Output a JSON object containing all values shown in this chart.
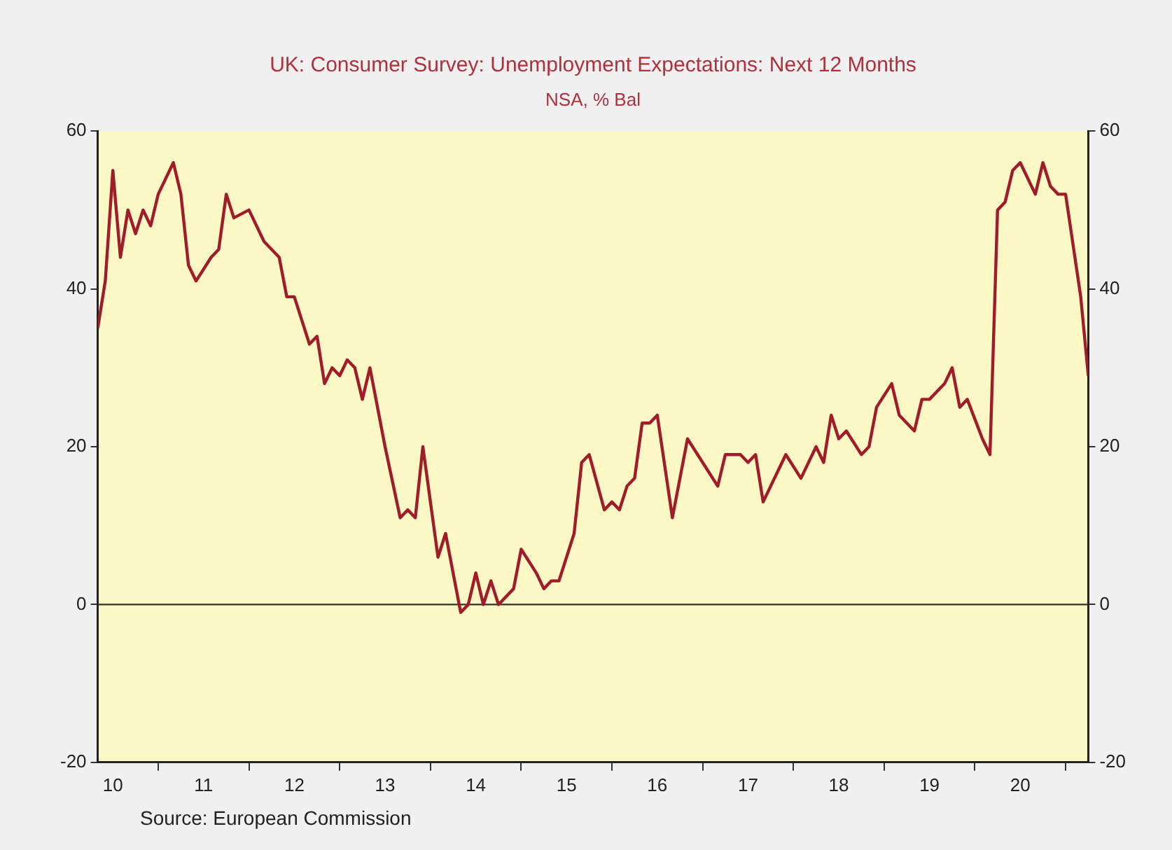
{
  "chart_data": {
    "type": "line",
    "title": "UK: Consumer Survey: Unemployment Expectations: Next 12 Months",
    "subtitle": "NSA, % Bal",
    "x": [
      "2010-05",
      "2010-06",
      "2010-07",
      "2010-08",
      "2010-09",
      "2010-10",
      "2010-11",
      "2010-12",
      "2011-01",
      "2011-03",
      "2011-04",
      "2011-05",
      "2011-06",
      "2011-08",
      "2011-09",
      "2011-10",
      "2011-11",
      "2012-01",
      "2012-03",
      "2012-05",
      "2012-06",
      "2012-07",
      "2012-09",
      "2012-10",
      "2012-11",
      "2012-12",
      "2013-01",
      "2013-02",
      "2013-03",
      "2013-04",
      "2013-05",
      "2013-07",
      "2013-09",
      "2013-10",
      "2013-11",
      "2013-12",
      "2014-01",
      "2014-02",
      "2014-03",
      "2014-05",
      "2014-06",
      "2014-07",
      "2014-08",
      "2014-09",
      "2014-10",
      "2014-12",
      "2015-01",
      "2015-03",
      "2015-04",
      "2015-05",
      "2015-06",
      "2015-08",
      "2015-09",
      "2015-10",
      "2015-12",
      "2016-01",
      "2016-02",
      "2016-03",
      "2016-04",
      "2016-05",
      "2016-06",
      "2016-07",
      "2016-09",
      "2016-11",
      "2017-01",
      "2017-03",
      "2017-04",
      "2017-06",
      "2017-07",
      "2017-08",
      "2017-09",
      "2017-11",
      "2017-12",
      "2018-02",
      "2018-04",
      "2018-05",
      "2018-06",
      "2018-07",
      "2018-08",
      "2018-10",
      "2018-11",
      "2018-12",
      "2019-02",
      "2019-03",
      "2019-05",
      "2019-06",
      "2019-07",
      "2019-09",
      "2019-10",
      "2019-11",
      "2019-12",
      "2020-02",
      "2020-03",
      "2020-04",
      "2020-05",
      "2020-06",
      "2020-07",
      "2020-09",
      "2020-10",
      "2020-11",
      "2020-12",
      "2021-01",
      "2021-03",
      "2021-04"
    ],
    "series": [
      {
        "color": "#a01c28",
        "values": [
          35,
          41,
          55,
          44,
          50,
          47,
          50,
          48,
          52,
          56,
          52,
          43,
          41,
          44,
          45,
          52,
          49,
          50,
          46,
          44,
          39,
          39,
          33,
          34,
          28,
          30,
          29,
          31,
          30,
          26,
          30,
          20,
          11,
          12,
          11,
          20,
          13,
          6,
          9,
          -1,
          0,
          4,
          0,
          3,
          0,
          2,
          7,
          4,
          2,
          3,
          3,
          9,
          18,
          19,
          12,
          13,
          12,
          15,
          16,
          23,
          23,
          24,
          11,
          21,
          18,
          15,
          19,
          19,
          18,
          19,
          13,
          17,
          19,
          16,
          20,
          18,
          24,
          21,
          22,
          19,
          20,
          25,
          28,
          24,
          22,
          26,
          26,
          28,
          30,
          25,
          26,
          21,
          19,
          50,
          51,
          55,
          56,
          52,
          56,
          53,
          52,
          52,
          39,
          29
        ]
      }
    ],
    "xlim": [
      "2010-05",
      "2021-04"
    ],
    "xticks": [
      {
        "value": "2010-07",
        "label": "10"
      },
      {
        "value": "2011",
        "label": null
      },
      {
        "value": "2011-07",
        "label": "11"
      },
      {
        "value": "2012",
        "label": null
      },
      {
        "value": "2012-07",
        "label": "12"
      },
      {
        "value": "2013",
        "label": null
      },
      {
        "value": "2013-07",
        "label": "13"
      },
      {
        "value": "2014",
        "label": null
      },
      {
        "value": "2014-07",
        "label": "14"
      },
      {
        "value": "2015",
        "label": null
      },
      {
        "value": "2015-07",
        "label": "15"
      },
      {
        "value": "2016",
        "label": null
      },
      {
        "value": "2016-07",
        "label": "16"
      },
      {
        "value": "2017",
        "label": null
      },
      {
        "value": "2017-07",
        "label": "17"
      },
      {
        "value": "2018",
        "label": null
      },
      {
        "value": "2018-07",
        "label": "18"
      },
      {
        "value": "2019",
        "label": null
      },
      {
        "value": "2019-07",
        "label": "19"
      },
      {
        "value": "2020",
        "label": null
      },
      {
        "value": "2020-07",
        "label": "20"
      },
      {
        "value": "2021",
        "label": null
      }
    ],
    "ylim": [
      -20,
      60
    ],
    "yticks": [
      -20,
      0,
      20,
      40,
      60
    ],
    "y2lim": [
      -20,
      60
    ],
    "y2ticks": [
      -20,
      0,
      20,
      40,
      60
    ],
    "ref_lines": [
      {
        "axis": "y",
        "value": 0,
        "color": "#303030"
      }
    ],
    "grid": false,
    "legend": false,
    "marker": "none",
    "line_style": "solid",
    "annotations": [
      "Source: European Commission"
    ]
  }
}
